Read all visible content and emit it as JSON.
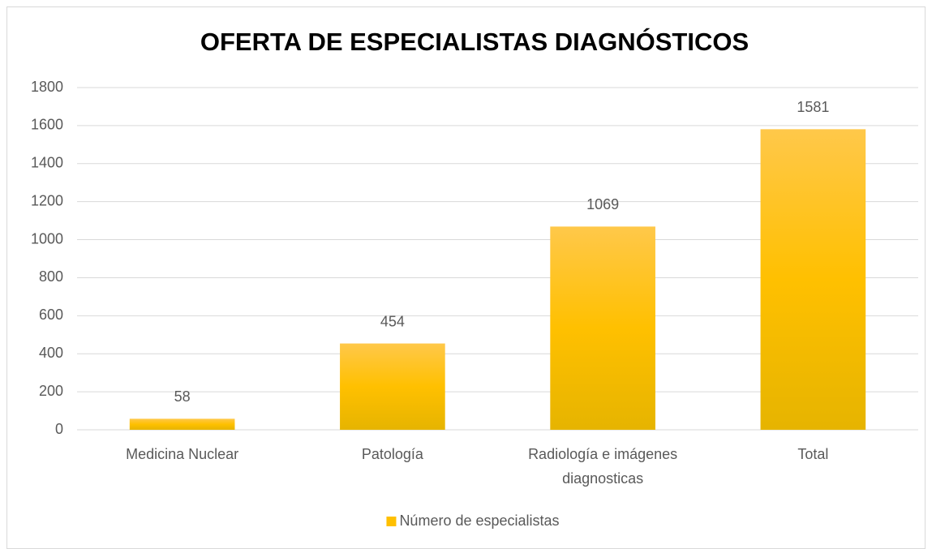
{
  "chart_data": {
    "type": "bar",
    "title": "OFERTA DE ESPECIALISTAS DIAGNÓSTICOS",
    "categories": [
      "Medicina Nuclear",
      "Patología",
      "Radiología e imágenes diagnosticas",
      "Total"
    ],
    "series": [
      {
        "name": "Número de especialistas",
        "color": "#ffc000",
        "values": [
          58,
          454,
          1069,
          1581
        ]
      }
    ],
    "ylim": [
      0,
      1800
    ],
    "yticks": [
      0,
      200,
      400,
      600,
      800,
      1000,
      1200,
      1400,
      1600,
      1800
    ],
    "grid": true,
    "legend": "bottom"
  }
}
